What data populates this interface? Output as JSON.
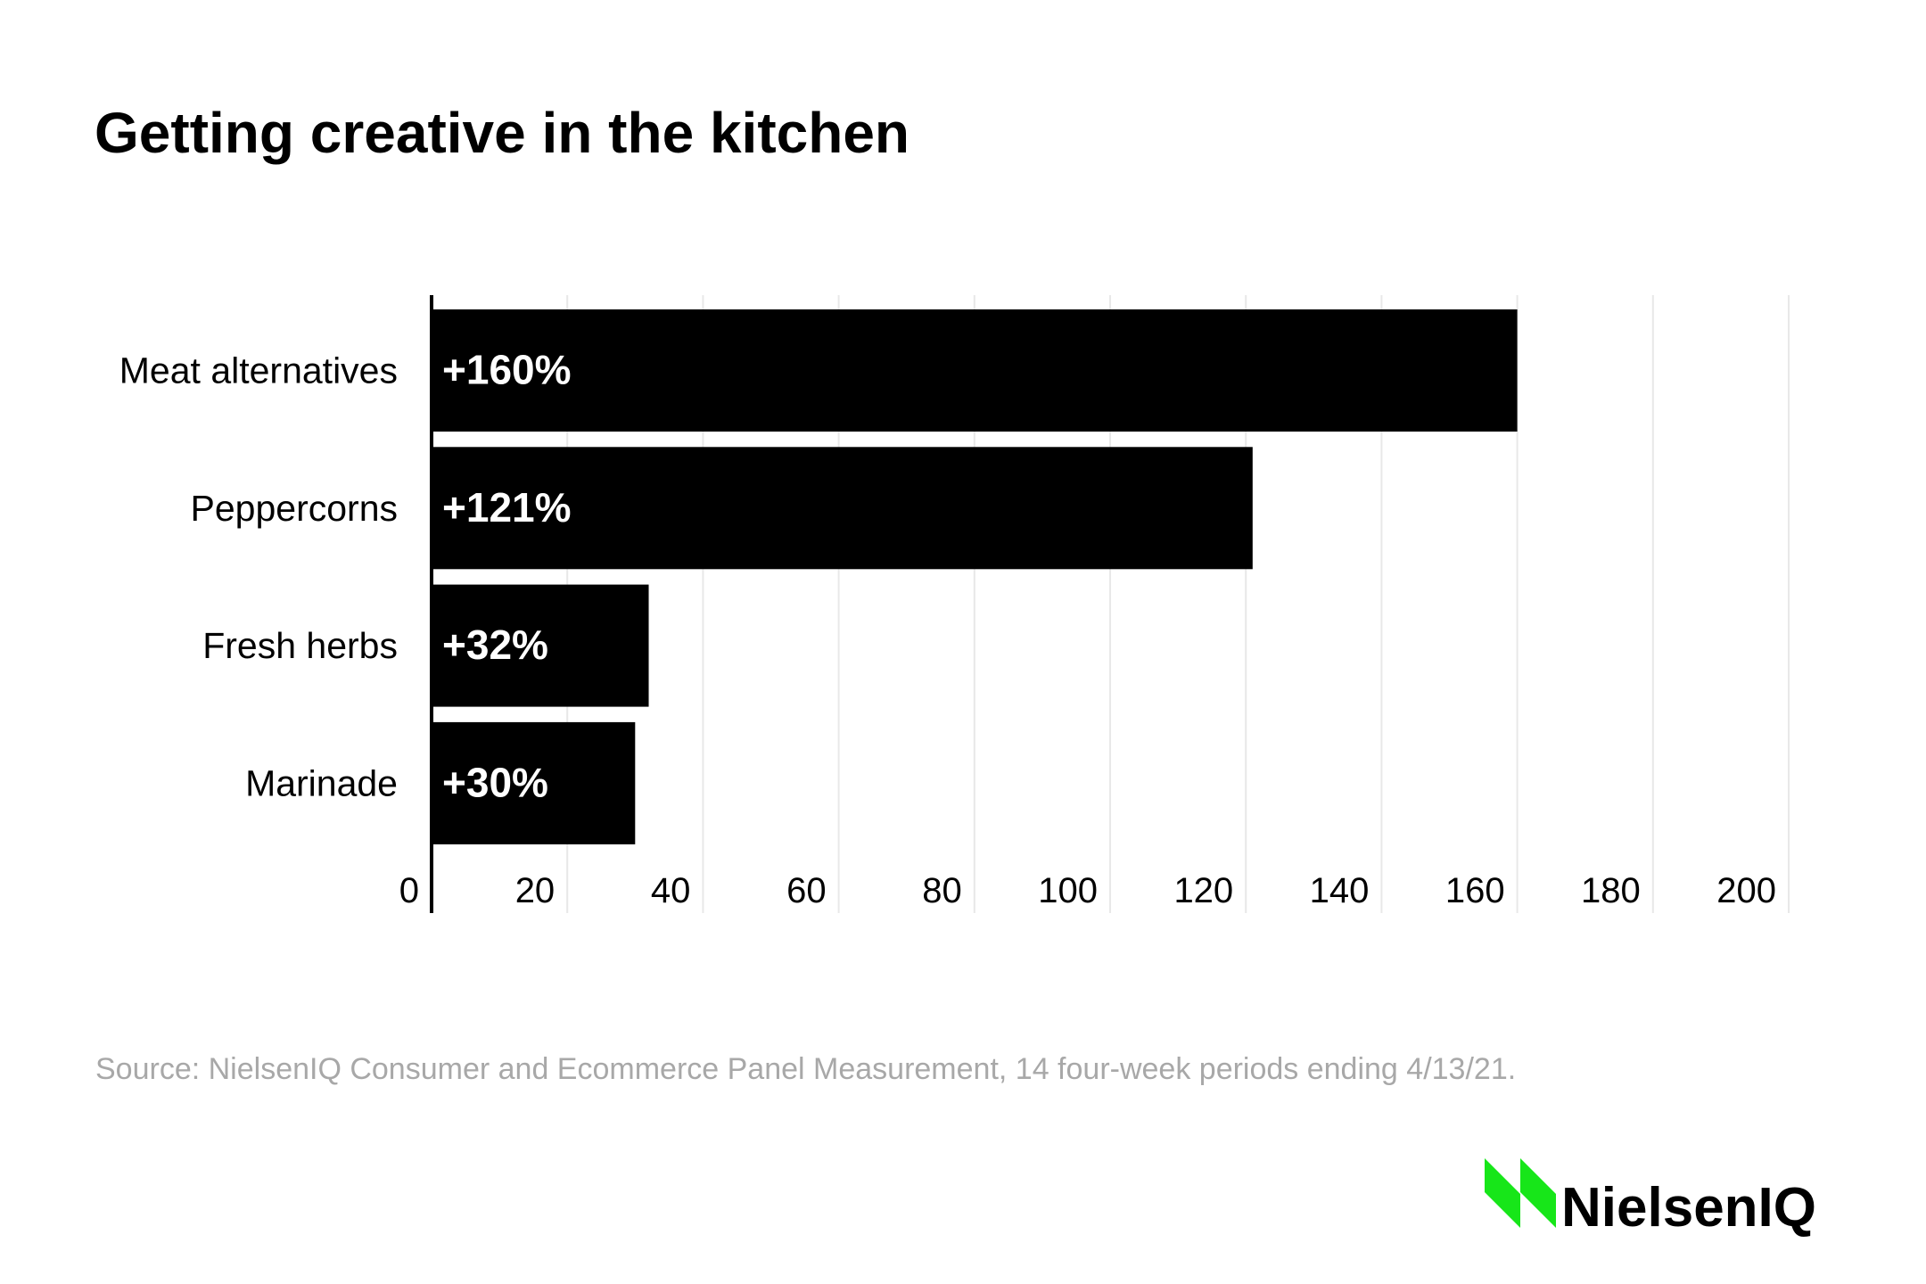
{
  "chart_data": {
    "type": "bar",
    "orientation": "horizontal",
    "title": "Getting creative in the kitchen",
    "categories": [
      "Meat alternatives",
      "Peppercorns",
      "Fresh herbs",
      "Marinade"
    ],
    "values": [
      160,
      121,
      32,
      30
    ],
    "data_labels": [
      "+160%",
      "+121%",
      "+32%",
      "+30%"
    ],
    "xlim": [
      0,
      200
    ],
    "x_ticks": [
      0,
      20,
      40,
      60,
      80,
      100,
      120,
      140,
      160,
      180,
      200
    ],
    "xlabel": "",
    "ylabel": "",
    "grid": "vertical",
    "bar_color": "#000000",
    "label_color": "#ffffff",
    "grid_color": "#e8e8e8"
  },
  "footer": {
    "source": "Source: NielsenIQ Consumer and Ecommerce Panel Measurement, 14 four-week periods ending 4/13/21."
  },
  "logo": {
    "text": "NielsenIQ",
    "mark_color": "#17e619"
  }
}
